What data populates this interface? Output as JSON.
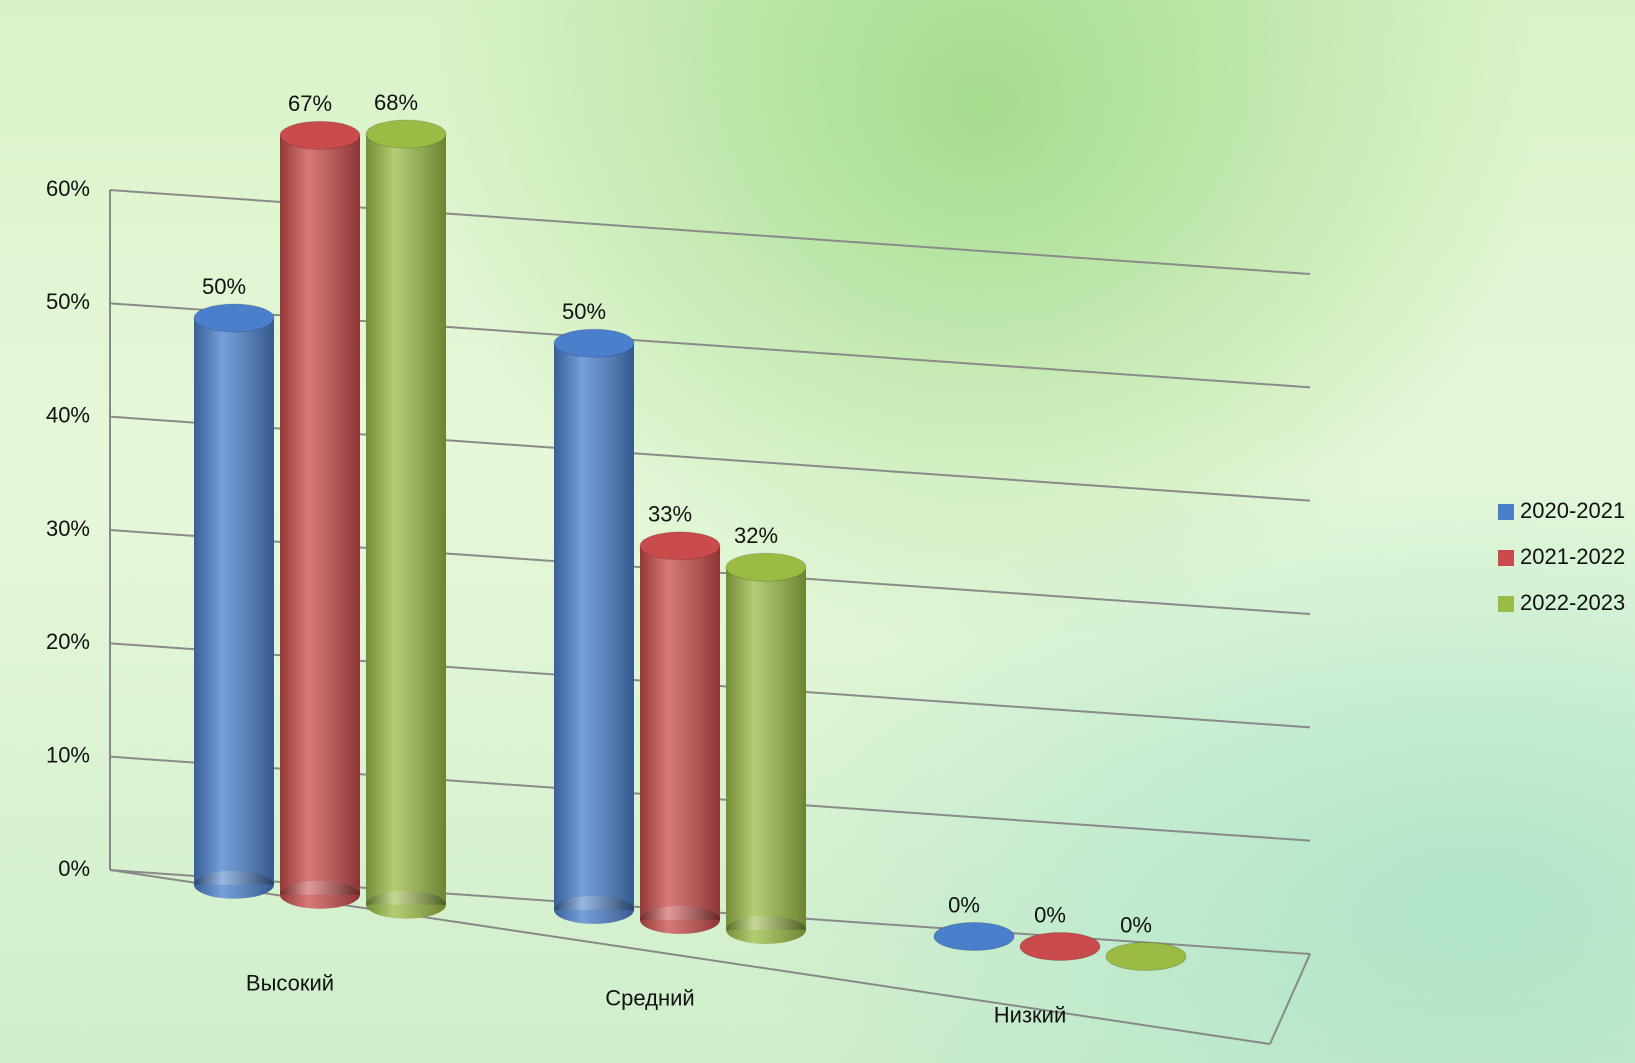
{
  "chart_data": {
    "type": "bar3d",
    "categories": [
      "Высокий",
      "Средний",
      "Низкий"
    ],
    "series": [
      {
        "name": "2020-2021",
        "color": "#4a7fcb",
        "values": [
          50,
          50,
          0
        ],
        "value_labels": [
          "50%",
          "50%",
          "0%"
        ]
      },
      {
        "name": "2021-2022",
        "color": "#c94b4b",
        "values": [
          67,
          33,
          0
        ],
        "value_labels": [
          "67%",
          "33%",
          "0%"
        ]
      },
      {
        "name": "2022-2023",
        "color": "#9bbb45",
        "values": [
          68,
          32,
          0
        ],
        "value_labels": [
          "68%",
          "32%",
          "0%"
        ]
      }
    ],
    "ylim": [
      0,
      60
    ],
    "yticks": [
      {
        "value": 0,
        "label": "0%"
      },
      {
        "value": 10,
        "label": "10%"
      },
      {
        "value": 20,
        "label": "20%"
      },
      {
        "value": 30,
        "label": "30%"
      },
      {
        "value": 40,
        "label": "40%"
      },
      {
        "value": 50,
        "label": "50%"
      },
      {
        "value": 60,
        "label": "60%"
      }
    ],
    "grid": true,
    "legend": "right"
  }
}
